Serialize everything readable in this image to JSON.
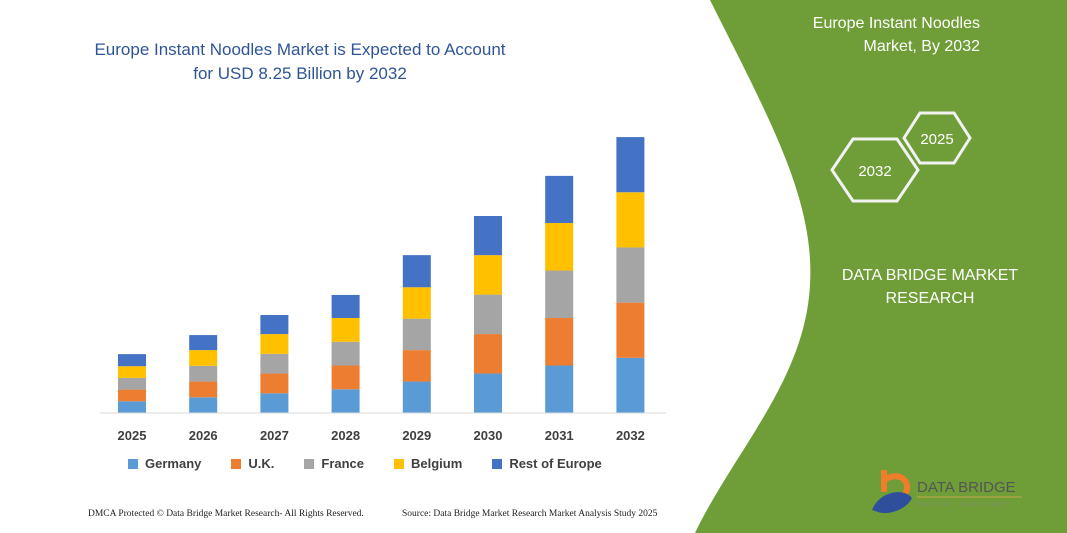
{
  "title": "Europe Instant Noodles Market is Expected to Account for USD 8.25 Billion by 2032",
  "side_panel": {
    "title_line1": "Europe Instant Noodles",
    "title_line2": "Market, By 2032",
    "hex_end_year": "2032",
    "hex_start_year": "2025",
    "brand_line1": "DATA BRIDGE MARKET",
    "brand_line2": "RESEARCH",
    "logo_text": "DATA BRIDGE",
    "logo_subtext": "MARKET RESEARCH",
    "color": "#6f9e38"
  },
  "footer": {
    "left": "DMCA Protected © Data Bridge Market Research- All Rights Reserved.",
    "right": "Source: Data Bridge Market Research Market Analysis Study 2025"
  },
  "chart_data": {
    "type": "bar",
    "stacked": true,
    "title": "Europe Instant Noodles Market is Expected to Account for USD 8.25 Billion by 2032",
    "xlabel": "",
    "ylabel": "",
    "ylim": [
      0,
      9
    ],
    "grid": false,
    "legend_position": "bottom",
    "categories": [
      "2025",
      "2026",
      "2027",
      "2028",
      "2029",
      "2030",
      "2031",
      "2032"
    ],
    "series": [
      {
        "name": "Germany",
        "color": "#5b9bd5",
        "values": [
          0.35,
          0.47,
          0.59,
          0.71,
          0.94,
          1.18,
          1.42,
          1.65
        ]
      },
      {
        "name": "U.K.",
        "color": "#ed7d31",
        "values": [
          0.35,
          0.47,
          0.59,
          0.71,
          0.94,
          1.18,
          1.42,
          1.65
        ]
      },
      {
        "name": "France",
        "color": "#a5a5a5",
        "values": [
          0.35,
          0.47,
          0.59,
          0.71,
          0.94,
          1.18,
          1.42,
          1.65
        ]
      },
      {
        "name": "Belgium",
        "color": "#ffc000",
        "values": [
          0.35,
          0.47,
          0.59,
          0.71,
          0.94,
          1.18,
          1.42,
          1.65
        ]
      },
      {
        "name": "Rest of Europe",
        "color": "#4472c4",
        "values": [
          0.36,
          0.45,
          0.57,
          0.69,
          0.96,
          1.17,
          1.41,
          1.65
        ]
      }
    ]
  }
}
